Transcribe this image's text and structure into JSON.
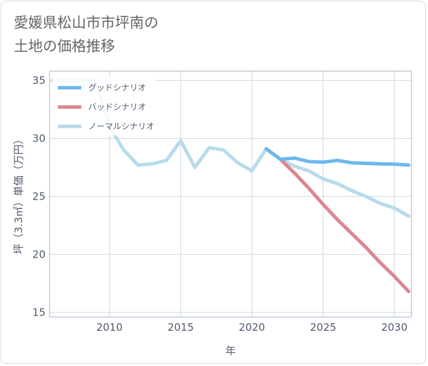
{
  "title_lines": [
    "愛媛県松山市市坪南の",
    "土地の価格推移"
  ],
  "colors": {
    "good": "#6cb8ec",
    "bad": "#dd8592",
    "normal": "#b7dbeb",
    "grid": "#cdd9e3",
    "frame": "#aab4c4",
    "text": "#505a6e"
  },
  "chart_data": {
    "type": "line",
    "title": "愛媛県松山市市坪南の土地の価格推移",
    "xlabel": "年",
    "ylabel": "坪（3.3㎡）単価（万円）",
    "xlim": [
      2005.8,
      2031.2
    ],
    "ylim": [
      14.6,
      35.8
    ],
    "xticks": [
      2010,
      2015,
      2020,
      2025,
      2030
    ],
    "yticks": [
      15,
      20,
      25,
      30,
      35
    ],
    "legend_position": "top-left",
    "series": [
      {
        "name": "グッドシナリオ",
        "color_key": "good",
        "x": [
          2021,
          2022,
          2023,
          2024,
          2025,
          2026,
          2027,
          2028,
          2029,
          2030,
          2031
        ],
        "y": [
          29.1,
          28.2,
          28.3,
          28.0,
          27.95,
          28.1,
          27.9,
          27.85,
          27.8,
          27.78,
          27.7
        ]
      },
      {
        "name": "バッドシナリオ",
        "color_key": "bad",
        "x": [
          2021,
          2022,
          2023,
          2024,
          2025,
          2026,
          2027,
          2028,
          2029,
          2030,
          2031
        ],
        "y": [
          29.1,
          28.2,
          27.0,
          25.7,
          24.3,
          23.0,
          21.8,
          20.6,
          19.3,
          18.1,
          16.8
        ]
      },
      {
        "name": "ノーマルシナリオ",
        "color_key": "normal",
        "x": [
          2006,
          2007,
          2008,
          2009,
          2010,
          2011,
          2012,
          2013,
          2014,
          2015,
          2016,
          2017,
          2018,
          2019,
          2020,
          2021,
          2022,
          2023,
          2024,
          2025,
          2026,
          2027,
          2028,
          2029,
          2030,
          2031
        ],
        "y": [
          35.0,
          35.0,
          35.0,
          35.0,
          31.0,
          29.0,
          27.7,
          27.8,
          28.1,
          29.8,
          27.5,
          29.2,
          29.0,
          27.9,
          27.2,
          29.1,
          28.2,
          27.6,
          27.2,
          26.5,
          26.1,
          25.5,
          25.0,
          24.4,
          24.0,
          23.3
        ]
      }
    ]
  }
}
